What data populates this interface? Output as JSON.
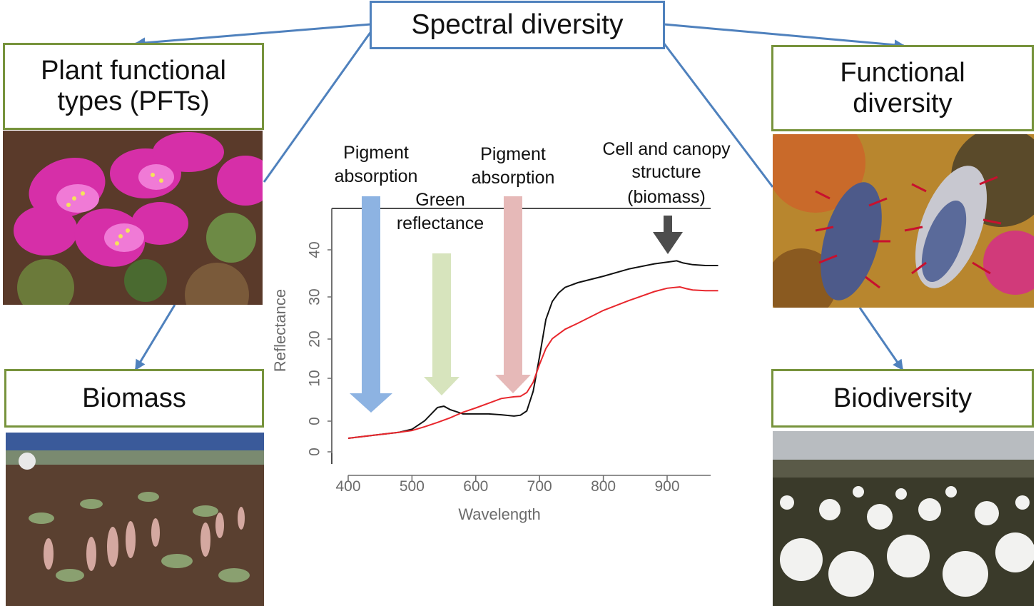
{
  "nodes": {
    "spectral_diversity": "Spectral diversity",
    "pft_line1": "Plant functional",
    "pft_line2": "types (PFTs)",
    "functional_line1": "Functional",
    "functional_line2": "diversity",
    "biomass": "Biomass",
    "biodiversity": "Biodiversity"
  },
  "photos": [
    {
      "subject": "pink saxifrage flowers"
    },
    {
      "subject": "fuzzy willow catkins with red anthers"
    },
    {
      "subject": "tundra slope with willow shoots"
    },
    {
      "subject": "cotton grass field under overcast sky"
    }
  ],
  "colors": {
    "box_blue": "#4f81bd",
    "box_green": "#77933c",
    "connector": "#4f81bd",
    "arrow_blue": "#8db3e2",
    "arrow_green": "#d7e4bd",
    "arrow_pink": "#e6b9b8",
    "arrow_dark": "#4d4d4d",
    "line_black": "#111111",
    "line_red": "#e8272d"
  },
  "annotations": [
    {
      "lines": [
        "Pigment",
        "absorption"
      ]
    },
    {
      "lines": [
        "Green",
        "reflectance"
      ]
    },
    {
      "lines": [
        "Pigment",
        "absorption"
      ]
    },
    {
      "lines": [
        "Cell and canopy",
        "structure",
        "(biomass)"
      ]
    }
  ],
  "chart_data": {
    "type": "line",
    "xlabel": "Wavelength",
    "ylabel": "Reflectance",
    "x_ticks": [
      400,
      500,
      600,
      700,
      800,
      900
    ],
    "y_tick_labels": [
      "0",
      "0",
      "10",
      "20",
      "30",
      "40"
    ],
    "xlim": [
      385,
      980
    ],
    "series": [
      {
        "color": "#111111",
        "x": [
          400,
          440,
          480,
          500,
          520,
          540,
          550,
          560,
          580,
          600,
          620,
          640,
          660,
          670,
          680,
          690,
          700,
          710,
          720,
          730,
          740,
          760,
          800,
          840,
          880,
          900,
          915,
          925,
          940,
          960,
          980
        ],
        "y": [
          0.5,
          1.2,
          1.9,
          2.6,
          4.6,
          7.7,
          8.0,
          7.2,
          6.2,
          6.2,
          6.2,
          6.0,
          5.7,
          5.9,
          6.9,
          11.5,
          19.6,
          28.3,
          32.5,
          34.5,
          35.8,
          36.9,
          38.4,
          40.1,
          41.3,
          41.7,
          42.0,
          41.5,
          41.1,
          40.9,
          40.9
        ]
      },
      {
        "color": "#e8272d",
        "x": [
          400,
          440,
          480,
          500,
          520,
          540,
          560,
          580,
          600,
          620,
          640,
          660,
          670,
          680,
          690,
          700,
          710,
          720,
          740,
          760,
          800,
          840,
          880,
          900,
          920,
          930,
          940,
          960,
          980
        ],
        "y": [
          0.5,
          1.2,
          1.9,
          2.3,
          3.2,
          4.2,
          5.3,
          6.6,
          7.6,
          8.7,
          9.8,
          10.2,
          10.3,
          11.2,
          13.6,
          17.8,
          21.5,
          23.8,
          26.0,
          27.4,
          30.4,
          32.7,
          34.8,
          35.6,
          35.9,
          35.5,
          35.2,
          35.0,
          35.0
        ]
      }
    ]
  }
}
